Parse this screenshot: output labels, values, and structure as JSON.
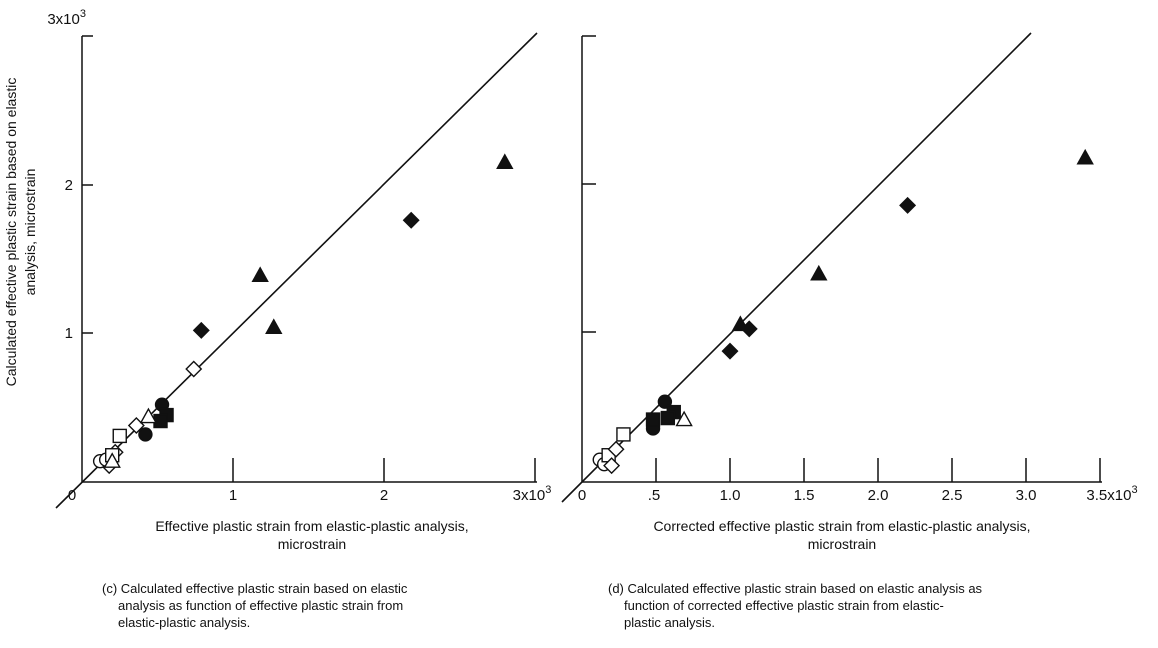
{
  "y_axis_label": [
    "Calculated effective plastic strain based on elastic",
    "analysis, microstrain"
  ],
  "charts": [
    {
      "id": "c",
      "x_axis_label": [
        "Effective plastic strain from elastic-plastic analysis,",
        "microstrain"
      ],
      "caption": [
        "(c) Calculated effective plastic strain based on elastic",
        "analysis as function of effective plastic strain from",
        "elastic-plastic analysis."
      ],
      "x_tick_labels": [
        "0",
        "1",
        "2",
        "3x10³"
      ],
      "y_tick_labels": [
        "1",
        "2",
        "3x10³"
      ]
    },
    {
      "id": "d",
      "x_axis_label": [
        "Corrected effective plastic strain from elastic-plastic analysis,",
        "microstrain"
      ],
      "caption": [
        "(d) Calculated effective plastic strain based on elastic analysis as",
        "function of corrected effective plastic strain from elastic-",
        "plastic analysis."
      ],
      "x_tick_labels": [
        "0",
        ".5",
        "1.0",
        "1.5",
        "2.0",
        "2.5",
        "3.0",
        "3.5x10³"
      ],
      "y_tick_labels": []
    }
  ],
  "chart_data": [
    {
      "type": "scatter",
      "x_units": "microstrain",
      "y_units": "microstrain",
      "xlim": [
        0,
        3000
      ],
      "ylim": [
        0,
        3000
      ],
      "x_ticks": [
        0,
        1000,
        2000,
        3000
      ],
      "y_ticks": [
        1000,
        2000,
        3000
      ],
      "grid": false,
      "reference_line": "y = x",
      "points": [
        {
          "marker": "triangle-filled",
          "x": 2800,
          "y": 2150
        },
        {
          "marker": "triangle-filled",
          "x": 1180,
          "y": 1390
        },
        {
          "marker": "triangle-filled",
          "x": 1270,
          "y": 1040
        },
        {
          "marker": "diamond-filled",
          "x": 2180,
          "y": 1760
        },
        {
          "marker": "diamond-filled",
          "x": 790,
          "y": 1020
        },
        {
          "marker": "diamond-open",
          "x": 740,
          "y": 760
        },
        {
          "marker": "diamond-open",
          "x": 360,
          "y": 380
        },
        {
          "marker": "diamond-open",
          "x": 220,
          "y": 200
        },
        {
          "marker": "diamond-open",
          "x": 180,
          "y": 110
        },
        {
          "marker": "circle-filled",
          "x": 530,
          "y": 520
        },
        {
          "marker": "circle-filled",
          "x": 420,
          "y": 320
        },
        {
          "marker": "circle-open",
          "x": 120,
          "y": 140
        },
        {
          "marker": "circle-open",
          "x": 160,
          "y": 150
        },
        {
          "marker": "square-filled",
          "x": 560,
          "y": 450
        },
        {
          "marker": "square-filled",
          "x": 520,
          "y": 410
        },
        {
          "marker": "square-open",
          "x": 250,
          "y": 310
        },
        {
          "marker": "square-open",
          "x": 200,
          "y": 180
        },
        {
          "marker": "triangle-open",
          "x": 440,
          "y": 440
        },
        {
          "marker": "triangle-open",
          "x": 200,
          "y": 140
        }
      ]
    },
    {
      "type": "scatter",
      "x_units": "microstrain",
      "y_units": "microstrain",
      "xlim": [
        0,
        3500
      ],
      "ylim": [
        0,
        3000
      ],
      "x_ticks": [
        0,
        500,
        1000,
        1500,
        2000,
        2500,
        3000,
        3500
      ],
      "y_ticks": [
        1000,
        2000,
        3000
      ],
      "grid": false,
      "reference_line": "y = x",
      "points": [
        {
          "marker": "triangle-filled",
          "x": 3400,
          "y": 2180
        },
        {
          "marker": "triangle-filled",
          "x": 1600,
          "y": 1400
        },
        {
          "marker": "triangle-filled",
          "x": 1070,
          "y": 1060
        },
        {
          "marker": "diamond-filled",
          "x": 2200,
          "y": 1860
        },
        {
          "marker": "diamond-filled",
          "x": 1130,
          "y": 1030
        },
        {
          "marker": "diamond-filled",
          "x": 1000,
          "y": 880
        },
        {
          "marker": "circle-filled",
          "x": 560,
          "y": 540
        },
        {
          "marker": "circle-filled",
          "x": 480,
          "y": 360
        },
        {
          "marker": "circle-open",
          "x": 120,
          "y": 150
        },
        {
          "marker": "circle-open",
          "x": 150,
          "y": 120
        },
        {
          "marker": "square-filled",
          "x": 620,
          "y": 470
        },
        {
          "marker": "square-filled",
          "x": 480,
          "y": 420
        },
        {
          "marker": "square-filled",
          "x": 580,
          "y": 430
        },
        {
          "marker": "square-open",
          "x": 280,
          "y": 320
        },
        {
          "marker": "square-open",
          "x": 180,
          "y": 180
        },
        {
          "marker": "triangle-open",
          "x": 690,
          "y": 420
        },
        {
          "marker": "diamond-open",
          "x": 200,
          "y": 110
        },
        {
          "marker": "diamond-open",
          "x": 230,
          "y": 220
        }
      ]
    }
  ]
}
